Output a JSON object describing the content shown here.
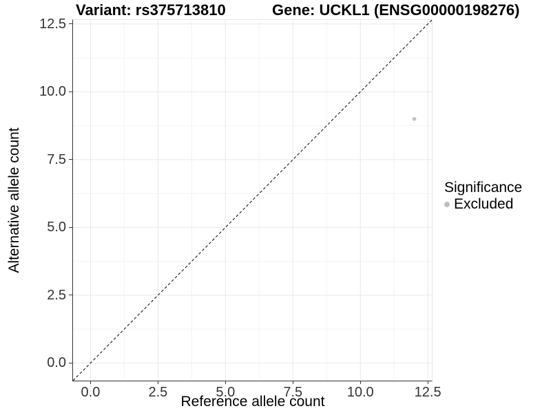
{
  "header": {
    "variant_title": "Variant: rs375713810",
    "gene_title": "Gene: UCKL1 (ENSG00000198276)"
  },
  "chart_data": {
    "type": "scatter",
    "xlabel": "Reference allele count",
    "ylabel": "Alternative allele count",
    "xlim": [
      -0.65,
      12.65
    ],
    "ylim": [
      -0.65,
      12.65
    ],
    "xticks": [
      0.0,
      2.5,
      5.0,
      7.5,
      10.0,
      12.5
    ],
    "yticks": [
      0.0,
      2.5,
      5.0,
      7.5,
      10.0,
      12.5
    ],
    "xticks_minor": [
      1.25,
      3.75,
      6.25,
      8.75,
      11.25
    ],
    "yticks_minor": [
      1.25,
      3.75,
      6.25,
      8.75,
      11.25
    ],
    "tick_label_decimals": 1,
    "grid": true,
    "identity_line": {
      "type": "diagonal-y-equals-x",
      "style": "dashed",
      "color": "#000000"
    },
    "series": [
      {
        "name": "Excluded",
        "color": "#c2c2c2",
        "points": [
          {
            "x": 12,
            "y": 9
          }
        ]
      }
    ],
    "legend": {
      "title": "Significance",
      "position": "right",
      "items": [
        {
          "label": "Excluded",
          "color": "#bebebe"
        }
      ]
    }
  },
  "colors": {
    "grid_major": "#e8e8e8",
    "grid_minor": "#f3f3f3",
    "axis_line": "#333333",
    "panel_border_light": "#e8e8e8",
    "tick_text": "#333333",
    "title_text": "#000000"
  }
}
